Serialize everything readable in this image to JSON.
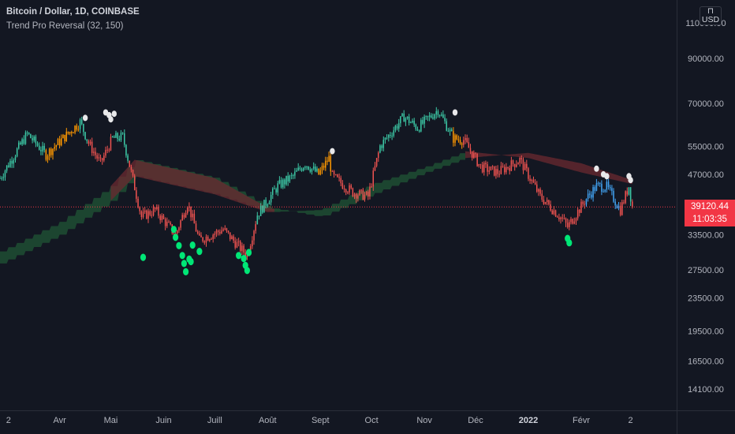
{
  "header": {
    "title": "Bitcoin / Dollar, 1D, COINBASE",
    "indicator": "Trend Pro Reversal (32, 150)",
    "currency_button": "USD"
  },
  "last_price": {
    "value": "39120.44",
    "countdown": "11:03:35",
    "color": "#f23645"
  },
  "colors": {
    "background": "#131722",
    "bull": "#26a69a",
    "bull_bright": "#3cc9a6",
    "bear": "#ef5350",
    "neutral_blue": "#42a5f5",
    "transition": "#ff9800",
    "signal_buy": "#00e676",
    "signal_sell": "#e8e8ea",
    "cloud_bull": "#1e4d33",
    "cloud_bear": "#6b2a30",
    "axis_text": "#b2b5be"
  },
  "chart_data": {
    "type": "candlestick",
    "title": "Bitcoin / Dollar, 1D, COINBASE",
    "indicator": "Trend Pro Reversal (32, 150)",
    "y_scale": "log",
    "ylim": [
      12500,
      125000
    ],
    "y_ticks": [
      "110000.00",
      "90000.00",
      "70000.00",
      "55000.00",
      "47000.00",
      "39120.44",
      "33500.00",
      "27500.00",
      "23500.00",
      "19500.00",
      "16500.00",
      "14100.00"
    ],
    "x_ticks": [
      "2",
      "Avr",
      "Mai",
      "Juin",
      "Juill",
      "Août",
      "Sept",
      "Oct",
      "Nov",
      "Déc",
      "2022",
      "Févr",
      "2"
    ],
    "x_tick_dates": [
      "2021-03-02",
      "2021-04-01",
      "2021-05-01",
      "2021-06-01",
      "2021-07-01",
      "2021-08-01",
      "2021-09-01",
      "2021-10-01",
      "2021-11-01",
      "2021-12-01",
      "2022-01-01",
      "2022-02-01",
      "2022-03-02"
    ],
    "x_range": [
      "2021-02-25",
      "2022-03-29"
    ],
    "last_date": "2022-03-03",
    "close_anchors": [
      {
        "date": "2021-02-25",
        "close": 46000,
        "trend": "bull"
      },
      {
        "date": "2021-03-13",
        "close": 59000,
        "trend": "bull"
      },
      {
        "date": "2021-03-24",
        "close": 52500,
        "trend": "transition"
      },
      {
        "date": "2021-04-13",
        "close": 63000,
        "trend": "bull"
      },
      {
        "date": "2021-04-18",
        "close": 56000,
        "trend": "bear"
      },
      {
        "date": "2021-04-25",
        "close": 50000,
        "trend": "bear"
      },
      {
        "date": "2021-05-02",
        "close": 57500,
        "trend": "bull"
      },
      {
        "date": "2021-05-08",
        "close": 58000,
        "trend": "bull"
      },
      {
        "date": "2021-05-12",
        "close": 49500,
        "trend": "bear"
      },
      {
        "date": "2021-05-19",
        "close": 37000,
        "trend": "bear"
      },
      {
        "date": "2021-05-27",
        "close": 38500,
        "trend": "bear"
      },
      {
        "date": "2021-06-08",
        "close": 33500,
        "trend": "bear"
      },
      {
        "date": "2021-06-15",
        "close": 40000,
        "trend": "bear"
      },
      {
        "date": "2021-06-22",
        "close": 32500,
        "trend": "bear"
      },
      {
        "date": "2021-07-06",
        "close": 34500,
        "trend": "bear"
      },
      {
        "date": "2021-07-20",
        "close": 29800,
        "trend": "bear"
      },
      {
        "date": "2021-07-26",
        "close": 37500,
        "trend": "bull"
      },
      {
        "date": "2021-08-07",
        "close": 44000,
        "trend": "bull"
      },
      {
        "date": "2021-08-16",
        "close": 46500,
        "trend": "bull"
      },
      {
        "date": "2021-08-23",
        "close": 50000,
        "trend": "bull"
      },
      {
        "date": "2021-08-31",
        "close": 47000,
        "trend": "transition"
      },
      {
        "date": "2021-09-06",
        "close": 51500,
        "trend": "transition"
      },
      {
        "date": "2021-09-08",
        "close": 46500,
        "trend": "bear"
      },
      {
        "date": "2021-09-20",
        "close": 42500,
        "trend": "bear"
      },
      {
        "date": "2021-09-29",
        "close": 41500,
        "trend": "bear"
      },
      {
        "date": "2021-10-06",
        "close": 55000,
        "trend": "bull"
      },
      {
        "date": "2021-10-20",
        "close": 65000,
        "trend": "bull"
      },
      {
        "date": "2021-10-28",
        "close": 61000,
        "trend": "bull"
      },
      {
        "date": "2021-11-09",
        "close": 67500,
        "trend": "bull"
      },
      {
        "date": "2021-11-18",
        "close": 57500,
        "trend": "transition"
      },
      {
        "date": "2021-11-24",
        "close": 57000,
        "trend": "bear"
      },
      {
        "date": "2021-12-04",
        "close": 49000,
        "trend": "bear"
      },
      {
        "date": "2021-12-14",
        "close": 47500,
        "trend": "bear"
      },
      {
        "date": "2021-12-27",
        "close": 51000,
        "trend": "bear"
      },
      {
        "date": "2022-01-08",
        "close": 41500,
        "trend": "bear"
      },
      {
        "date": "2022-01-21",
        "close": 36500,
        "trend": "bear"
      },
      {
        "date": "2022-01-24",
        "close": 35000,
        "trend": "bear"
      },
      {
        "date": "2022-02-04",
        "close": 41000,
        "trend": "neutral"
      },
      {
        "date": "2022-02-10",
        "close": 44000,
        "trend": "neutral"
      },
      {
        "date": "2022-02-16",
        "close": 43800,
        "trend": "neutral"
      },
      {
        "date": "2022-02-24",
        "close": 38500,
        "trend": "bear"
      },
      {
        "date": "2022-03-01",
        "close": 44000,
        "trend": "bull"
      },
      {
        "date": "2022-03-03",
        "close": 39120.44,
        "trend": "bear"
      }
    ],
    "cloud": {
      "upper": [
        {
          "date": "2021-02-25",
          "value": 30500
        },
        {
          "date": "2021-04-01",
          "value": 36000
        },
        {
          "date": "2021-05-01",
          "value": 44000
        },
        {
          "date": "2021-05-15",
          "value": 51000
        },
        {
          "date": "2021-07-01",
          "value": 46000
        },
        {
          "date": "2021-08-01",
          "value": 39000
        },
        {
          "date": "2021-09-01",
          "value": 37000
        },
        {
          "date": "2021-10-01",
          "value": 42000
        },
        {
          "date": "2021-11-01",
          "value": 47500
        },
        {
          "date": "2021-11-25",
          "value": 51500
        },
        {
          "date": "2022-01-01",
          "value": 53000
        },
        {
          "date": "2022-02-01",
          "value": 50000
        },
        {
          "date": "2022-03-03",
          "value": 45500
        }
      ],
      "lower": [
        {
          "date": "2021-02-25",
          "value": 28500
        },
        {
          "date": "2021-04-01",
          "value": 33500
        },
        {
          "date": "2021-05-01",
          "value": 40500
        },
        {
          "date": "2021-05-15",
          "value": 46500
        },
        {
          "date": "2021-07-01",
          "value": 42000
        },
        {
          "date": "2021-08-01",
          "value": 38000
        },
        {
          "date": "2021-09-01",
          "value": 38500
        },
        {
          "date": "2021-10-01",
          "value": 44500
        },
        {
          "date": "2021-11-01",
          "value": 49000
        },
        {
          "date": "2021-11-25",
          "value": 53500
        },
        {
          "date": "2022-01-01",
          "value": 51500
        },
        {
          "date": "2022-02-01",
          "value": 47500
        },
        {
          "date": "2022-03-03",
          "value": 44500
        }
      ],
      "cross_date": "2021-11-25"
    },
    "signals": {
      "sell": [
        {
          "date": "2021-04-16",
          "value": 64500
        },
        {
          "date": "2021-04-28",
          "value": 66500
        },
        {
          "date": "2021-04-30",
          "value": 65500
        },
        {
          "date": "2021-05-03",
          "value": 66000
        },
        {
          "date": "2021-05-01",
          "value": 64000
        },
        {
          "date": "2021-09-08",
          "value": 53500
        },
        {
          "date": "2021-11-19",
          "value": 66500
        },
        {
          "date": "2022-02-10",
          "value": 48500
        },
        {
          "date": "2022-02-14",
          "value": 47000
        },
        {
          "date": "2022-02-16",
          "value": 46500
        },
        {
          "date": "2022-03-01",
          "value": 46500
        },
        {
          "date": "2022-03-02",
          "value": 45500
        }
      ],
      "buy": [
        {
          "date": "2021-05-20",
          "value": 29500
        },
        {
          "date": "2021-06-07",
          "value": 34500
        },
        {
          "date": "2021-06-08",
          "value": 33000
        },
        {
          "date": "2021-06-10",
          "value": 31500
        },
        {
          "date": "2021-06-12",
          "value": 29800
        },
        {
          "date": "2021-06-13",
          "value": 28500
        },
        {
          "date": "2021-06-14",
          "value": 27200
        },
        {
          "date": "2021-06-16",
          "value": 29200
        },
        {
          "date": "2021-06-17",
          "value": 28800
        },
        {
          "date": "2021-06-22",
          "value": 30500
        },
        {
          "date": "2021-06-18",
          "value": 31600
        },
        {
          "date": "2021-07-15",
          "value": 29800
        },
        {
          "date": "2021-07-18",
          "value": 29300
        },
        {
          "date": "2021-07-19",
          "value": 28200
        },
        {
          "date": "2021-07-20",
          "value": 27400
        },
        {
          "date": "2021-07-21",
          "value": 30300
        },
        {
          "date": "2022-01-24",
          "value": 32800
        },
        {
          "date": "2022-01-25",
          "value": 32000
        }
      ]
    }
  }
}
